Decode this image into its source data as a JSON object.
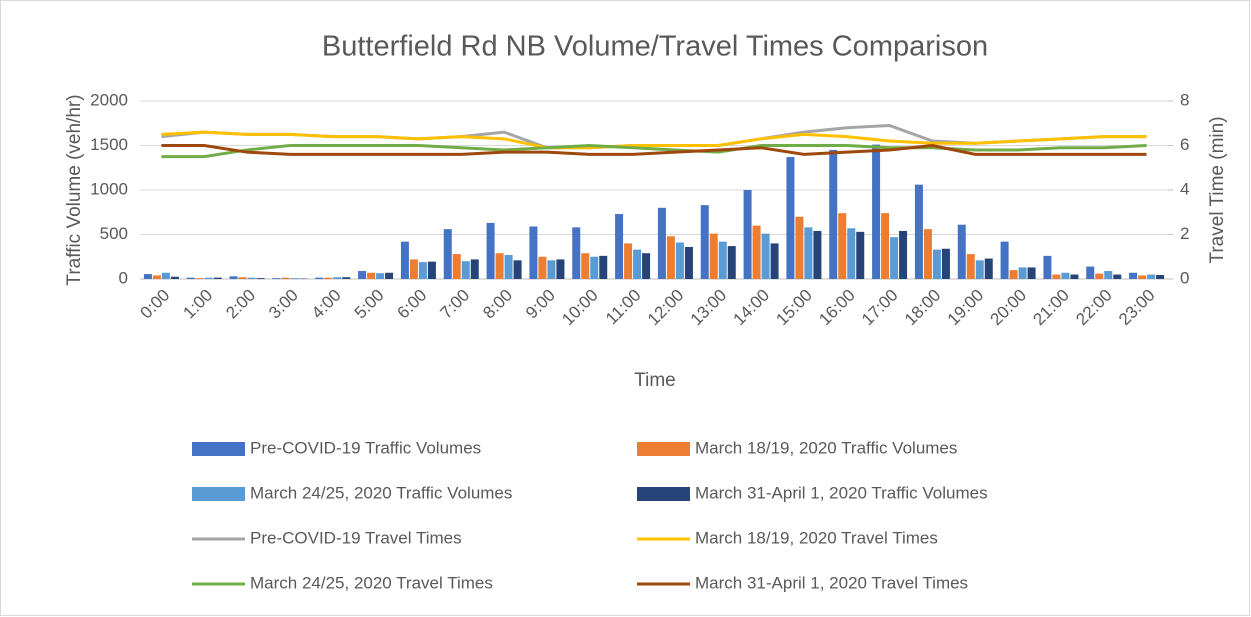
{
  "chart_data": {
    "type": "bar-line",
    "title": "Butterfield Rd NB Volume/Travel Times Comparison",
    "x_label": "Time",
    "y_label": "Traffic Volume (veh/hr)",
    "y2_label": "Travel Time (min)",
    "categories": [
      "0:00",
      "1:00",
      "2:00",
      "3:00",
      "4:00",
      "5:00",
      "6:00",
      "7:00",
      "8:00",
      "9:00",
      "10:00",
      "11:00",
      "12:00",
      "13:00",
      "14:00",
      "15:00",
      "16:00",
      "17:00",
      "18:00",
      "19:00",
      "20:00",
      "21:00",
      "22:00",
      "23:00"
    ],
    "ylim": [
      0,
      2000
    ],
    "yticks": [
      0,
      500,
      1000,
      1500,
      2000
    ],
    "y2lim": [
      0,
      8
    ],
    "y2ticks": [
      0,
      2,
      4,
      6,
      8
    ],
    "grid": true,
    "series": [
      {
        "name": "Pre-COVID-19 Traffic Volumes",
        "kind": "bar",
        "color": "#4472c4",
        "values": [
          55,
          15,
          30,
          10,
          15,
          90,
          420,
          560,
          630,
          590,
          580,
          730,
          800,
          830,
          1000,
          1370,
          1450,
          1510,
          1060,
          610,
          420,
          260,
          140,
          70
        ]
      },
      {
        "name": "March 18/19, 2020 Traffic Volumes",
        "kind": "bar",
        "color": "#ed7d31",
        "values": [
          40,
          10,
          20,
          15,
          15,
          70,
          220,
          280,
          290,
          250,
          290,
          400,
          480,
          510,
          600,
          700,
          740,
          740,
          560,
          280,
          100,
          50,
          60,
          40
        ]
      },
      {
        "name": "March 24/25, 2020 Traffic Volumes",
        "kind": "bar",
        "color": "#5b9bd5",
        "values": [
          70,
          15,
          15,
          10,
          20,
          65,
          190,
          200,
          270,
          210,
          250,
          330,
          410,
          420,
          510,
          580,
          570,
          470,
          330,
          210,
          130,
          70,
          90,
          50
        ]
      },
      {
        "name": "March 31-April 1, 2020 Traffic Volumes",
        "kind": "bar",
        "color": "#264478",
        "values": [
          25,
          15,
          10,
          5,
          20,
          70,
          195,
          220,
          210,
          220,
          260,
          290,
          360,
          370,
          400,
          540,
          530,
          540,
          340,
          230,
          130,
          50,
          50,
          45
        ]
      },
      {
        "name": "Pre-COVID-19 Travel Times",
        "kind": "line",
        "axis": "y2",
        "color": "#a5a5a5",
        "values": [
          6.4,
          6.6,
          6.5,
          6.5,
          6.4,
          6.4,
          6.3,
          6.4,
          6.6,
          5.9,
          5.9,
          6.0,
          6.0,
          6.0,
          6.3,
          6.6,
          6.8,
          6.9,
          6.2,
          6.1,
          6.2,
          6.3,
          6.4,
          6.4
        ]
      },
      {
        "name": "March 18/19, 2020 Travel Times",
        "kind": "line",
        "axis": "y2",
        "color": "#ffc000",
        "values": [
          6.5,
          6.6,
          6.5,
          6.5,
          6.4,
          6.4,
          6.3,
          6.4,
          6.3,
          5.9,
          5.9,
          6.0,
          6.0,
          6.0,
          6.3,
          6.5,
          6.4,
          6.2,
          6.1,
          6.1,
          6.2,
          6.3,
          6.4,
          6.4
        ]
      },
      {
        "name": "March 24/25, 2020 Travel Times",
        "kind": "line",
        "axis": "y2",
        "color": "#70ad47",
        "values": [
          5.5,
          5.5,
          5.8,
          6.0,
          6.0,
          6.0,
          6.0,
          5.9,
          5.8,
          5.9,
          6.0,
          5.9,
          5.8,
          5.7,
          6.0,
          6.0,
          6.0,
          5.9,
          5.9,
          5.8,
          5.8,
          5.9,
          5.9,
          6.0
        ]
      },
      {
        "name": "March 31-April 1, 2020 Travel Times",
        "kind": "line",
        "axis": "y2",
        "color": "#9e480e",
        "values": [
          6.0,
          6.0,
          5.7,
          5.6,
          5.6,
          5.6,
          5.6,
          5.6,
          5.7,
          5.7,
          5.6,
          5.6,
          5.7,
          5.8,
          5.9,
          5.6,
          5.7,
          5.8,
          6.0,
          5.6,
          5.6,
          5.6,
          5.6,
          5.6
        ]
      }
    ]
  }
}
